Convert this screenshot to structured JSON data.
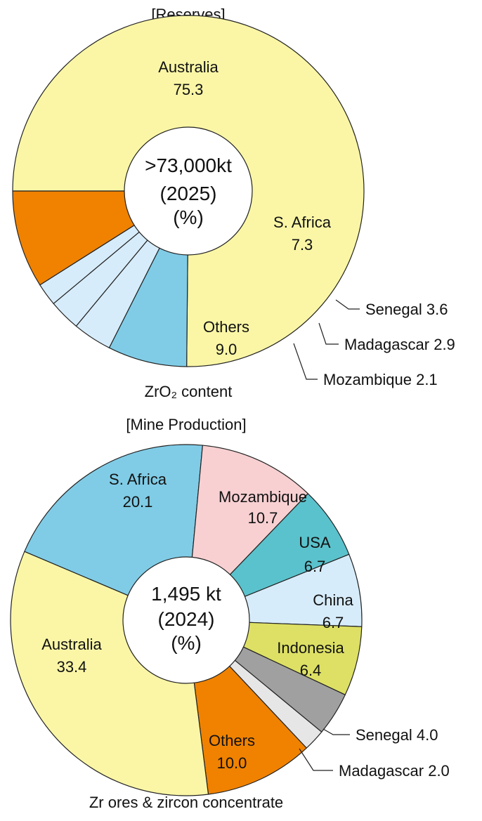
{
  "chart_data": [
    {
      "type": "pie",
      "title": "[Reserves]",
      "center_lines": [
        ">73,000kt",
        "(2025)",
        "(%)"
      ],
      "footnote": "ZrO₂ content",
      "slices": [
        {
          "label": "Australia",
          "value": 75.3,
          "display": "75.3",
          "color": "#faf6a6",
          "label_mode": "inside"
        },
        {
          "label": "S. Africa",
          "value": 7.3,
          "display": "7.3",
          "color": "#80cce6",
          "label_mode": "inside"
        },
        {
          "label": "Senegal",
          "value": 3.6,
          "display": "3.6",
          "color": "#d7ecfa",
          "label_mode": "callout"
        },
        {
          "label": "Madagascar",
          "value": 2.9,
          "display": "2.9",
          "color": "#d7ecfa",
          "label_mode": "callout"
        },
        {
          "label": "Mozambique",
          "value": 2.1,
          "display": "2.1",
          "color": "#d7ecfa",
          "label_mode": "callout"
        },
        {
          "label": "Others",
          "value": 9.0,
          "display": "9.0",
          "color": "#f08200",
          "label_mode": "inside"
        }
      ]
    },
    {
      "type": "pie",
      "title": "[Mine Production]",
      "center_lines": [
        "1,495 kt",
        "(2024)",
        "(%)"
      ],
      "footnote": "Zr ores & zircon concentrate",
      "slices": [
        {
          "label": "S. Africa",
          "value": 20.1,
          "display": "20.1",
          "color": "#80cce6",
          "label_mode": "inside"
        },
        {
          "label": "Mozambique",
          "value": 10.7,
          "display": "10.7",
          "color": "#f8d0d2",
          "label_mode": "inside"
        },
        {
          "label": "USA",
          "value": 6.7,
          "display": "6.7",
          "color": "#5ac2cc",
          "label_mode": "inside"
        },
        {
          "label": "China",
          "value": 6.7,
          "display": "6.7",
          "color": "#d7ecfa",
          "label_mode": "inside"
        },
        {
          "label": "Indonesia",
          "value": 6.4,
          "display": "6.4",
          "color": "#dde064",
          "label_mode": "inside"
        },
        {
          "label": "Senegal",
          "value": 4.0,
          "display": "4.0",
          "color": "#a0a0a0",
          "label_mode": "callout"
        },
        {
          "label": "Madagascar",
          "value": 2.0,
          "display": "2.0",
          "color": "#e6e6e6",
          "label_mode": "callout"
        },
        {
          "label": "Others",
          "value": 10.0,
          "display": "10.0",
          "color": "#f08200",
          "label_mode": "inside"
        },
        {
          "label": "Australia",
          "value": 33.4,
          "display": "33.4",
          "color": "#faf6a6",
          "label_mode": "inside"
        }
      ]
    }
  ]
}
